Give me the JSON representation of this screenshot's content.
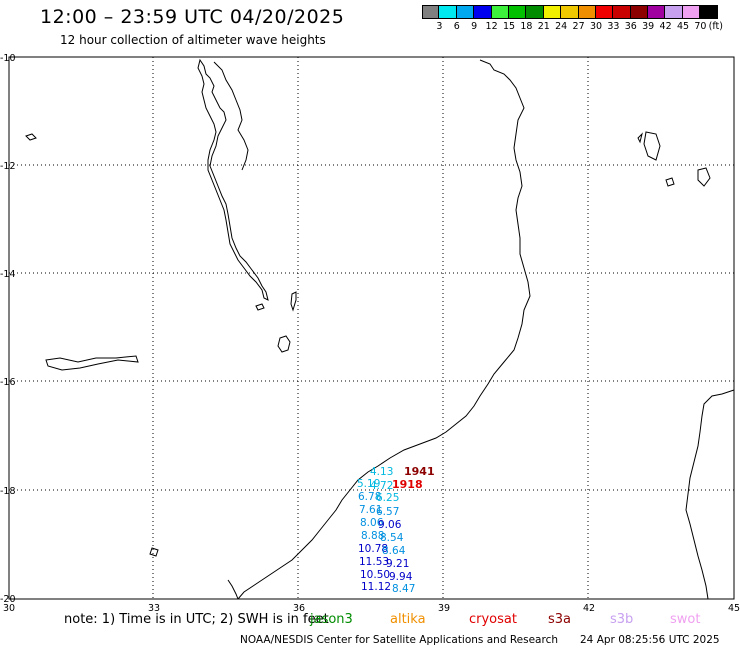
{
  "header": {
    "title": "12:00 – 23:59 UTC 04/20/2025",
    "subtitle": "12 hour collection of altimeter wave heights"
  },
  "legend": {
    "unit": "(ft)",
    "colors": [
      "#808080",
      "#00e8f0",
      "#00a8f0",
      "#0000f0",
      "#3cf03c",
      "#00c000",
      "#008c00",
      "#f0f000",
      "#f0c800",
      "#f09000",
      "#f00000",
      "#c80000",
      "#8c0000",
      "#a000a0",
      "#c8a0f0",
      "#f0a0f0",
      "#000000"
    ],
    "labels": [
      "3",
      "6",
      "9",
      "12",
      "15",
      "18",
      "21",
      "24",
      "27",
      "30",
      "33",
      "36",
      "39",
      "42",
      "45",
      "70"
    ]
  },
  "axes": {
    "lon_labels": [
      "30",
      "33",
      "36",
      "39",
      "42",
      "45"
    ],
    "lat_labels": [
      "-10",
      "-12",
      "-14",
      "-16",
      "-18",
      "-20"
    ]
  },
  "observations": [
    {
      "text": "4.13",
      "color": "#00b8e0"
    },
    {
      "text": "5.19",
      "color": "#00b8e0"
    },
    {
      "text": "4.72",
      "color": "#00b8e0"
    },
    {
      "text": "6.78",
      "color": "#0090e0"
    },
    {
      "text": "6.25",
      "color": "#00b8e0"
    },
    {
      "text": "7.61",
      "color": "#0090e0"
    },
    {
      "text": "6.57",
      "color": "#0090e0"
    },
    {
      "text": "8.06",
      "color": "#0090e0"
    },
    {
      "text": "9.06",
      "color": "#0000c8"
    },
    {
      "text": "8.88",
      "color": "#0090e0"
    },
    {
      "text": "8.54",
      "color": "#0090e0"
    },
    {
      "text": "10.78",
      "color": "#0000c8"
    },
    {
      "text": "8.64",
      "color": "#0090e0"
    },
    {
      "text": "11.53",
      "color": "#0000c8"
    },
    {
      "text": "9.21",
      "color": "#0000c8"
    },
    {
      "text": "10.50",
      "color": "#0000c8"
    },
    {
      "text": "9.94",
      "color": "#0000c8"
    },
    {
      "text": "11.12",
      "color": "#0000c8"
    },
    {
      "text": "8.47",
      "color": "#0090e0"
    }
  ],
  "pass_labels": [
    {
      "text": "1941",
      "color": "#8c0000"
    },
    {
      "text": "1918",
      "color": "#e00000"
    }
  ],
  "footer": {
    "note": "note: 1) Time is in UTC; 2) SWH is in feet",
    "missions": [
      {
        "text": "jason3",
        "color": "#008c00"
      },
      {
        "text": "altika",
        "color": "#f09000"
      },
      {
        "text": "cryosat",
        "color": "#e00000"
      },
      {
        "text": "s3a",
        "color": "#8c0000"
      },
      {
        "text": "s3b",
        "color": "#c8a0f0"
      },
      {
        "text": "swot",
        "color": "#f0a0f0"
      }
    ],
    "credit": "NOAA/NESDIS Center for Satellite Applications and Research",
    "timestamp": "24 Apr 08:25:56 UTC 2025"
  }
}
